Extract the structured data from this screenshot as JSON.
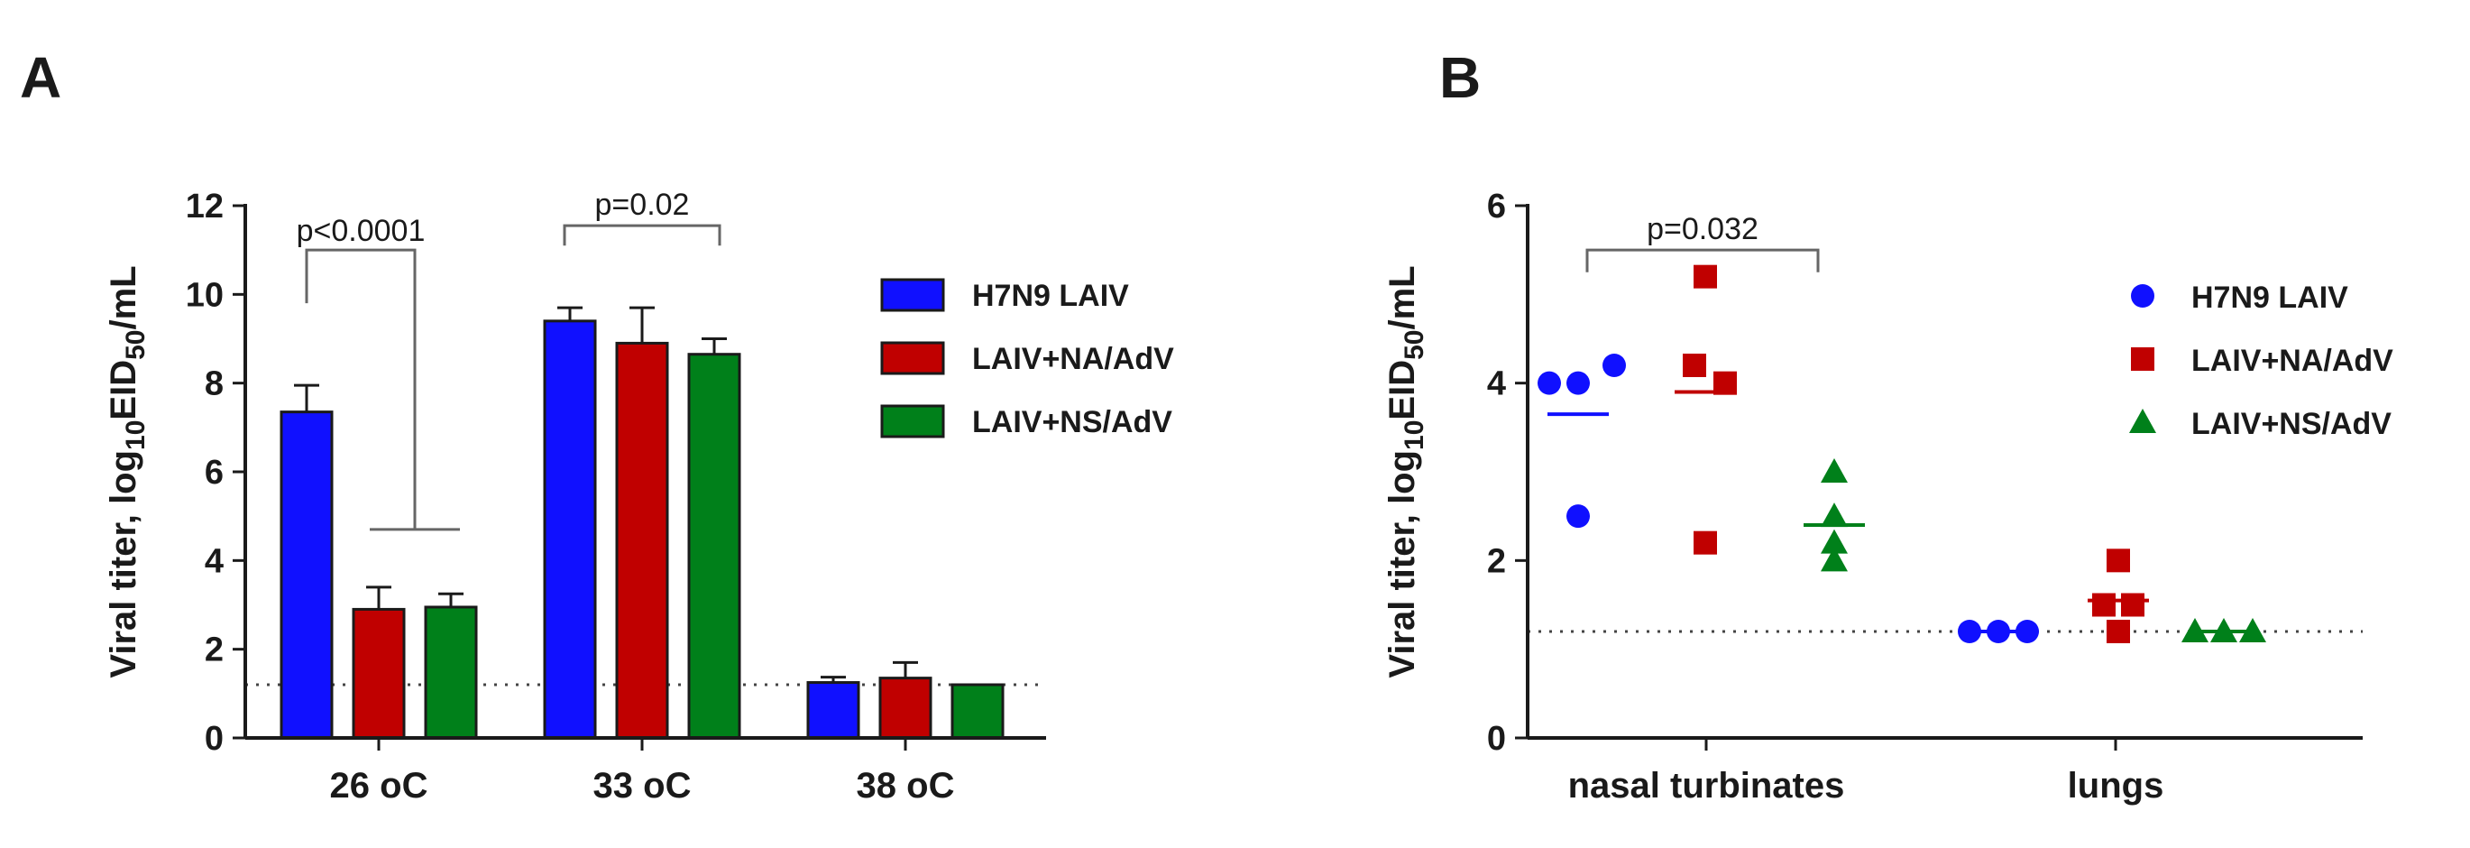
{
  "chart_data": [
    {
      "panel": "A",
      "type": "bar",
      "ylabel": "Viral titer, log10EID50/mL",
      "ylabel_parts": {
        "pre": "Viral titer, log",
        "sub1": "10",
        "mid": "EID",
        "sub2": "50",
        "post": "/mL"
      },
      "ylim": [
        0,
        12
      ],
      "yticks": [
        "0",
        "2",
        "4",
        "6",
        "8",
        "10",
        "12"
      ],
      "categories": [
        "26 oC",
        "33 oC",
        "38 oC"
      ],
      "detection_limit": 1.2,
      "series": [
        {
          "name": "H7N9 LAIV",
          "color": "#1010ff",
          "values": [
            7.35,
            9.4,
            1.25
          ],
          "errors": [
            0.6,
            0.3,
            0.12
          ]
        },
        {
          "name": "LAIV+NA/AdV",
          "color": "#c00000",
          "values": [
            2.9,
            8.9,
            1.35
          ],
          "errors": [
            0.5,
            0.8,
            0.35
          ]
        },
        {
          "name": "LAIV+NS/AdV",
          "color": "#00801a",
          "values": [
            2.95,
            8.65,
            1.2
          ],
          "errors": [
            0.3,
            0.35,
            0
          ]
        }
      ],
      "annotations": [
        {
          "text": "p<0.0001",
          "category": 0
        },
        {
          "text": "p=0.02",
          "category": 1
        }
      ]
    },
    {
      "panel": "B",
      "type": "scatter",
      "ylabel": "Viral titer, log10EID50/mL",
      "ylabel_parts": {
        "pre": "Viral titer, log",
        "sub1": "10",
        "mid": "EID",
        "sub2": "50",
        "post": "/mL"
      },
      "ylim": [
        0,
        6
      ],
      "yticks": [
        "0",
        "2",
        "4",
        "6"
      ],
      "categories": [
        "nasal turbinates",
        "lungs"
      ],
      "detection_limit": 1.2,
      "series": [
        {
          "name": "H7N9 LAIV",
          "color": "#1010ff",
          "marker": "circle",
          "points": [
            [
              0,
              4.0
            ],
            [
              0,
              4.0
            ],
            [
              0,
              4.2
            ],
            [
              0,
              2.5
            ],
            [
              1,
              1.2
            ],
            [
              1,
              1.2
            ],
            [
              1,
              1.2
            ]
          ],
          "medians": [
            3.65,
            1.2
          ]
        },
        {
          "name": "LAIV+NA/AdV",
          "color": "#c00000",
          "marker": "square",
          "points": [
            [
              0,
              5.2
            ],
            [
              0,
              4.2
            ],
            [
              0,
              4.0
            ],
            [
              0,
              2.2
            ],
            [
              1,
              2.0
            ],
            [
              1,
              1.5
            ],
            [
              1,
              1.5
            ],
            [
              1,
              1.2
            ]
          ],
          "medians": [
            3.9,
            1.55
          ]
        },
        {
          "name": "LAIV+NS/AdV",
          "color": "#00801a",
          "marker": "triangle",
          "points": [
            [
              0,
              3.0
            ],
            [
              0,
              2.5
            ],
            [
              0,
              2.2
            ],
            [
              0,
              2.0
            ],
            [
              1,
              1.2
            ],
            [
              1,
              1.2
            ],
            [
              1,
              1.2
            ]
          ],
          "medians": [
            2.4,
            1.2
          ]
        }
      ],
      "annotations": [
        {
          "text": "p=0.032"
        }
      ]
    }
  ],
  "panels": {
    "a_label": "A",
    "b_label": "B"
  }
}
